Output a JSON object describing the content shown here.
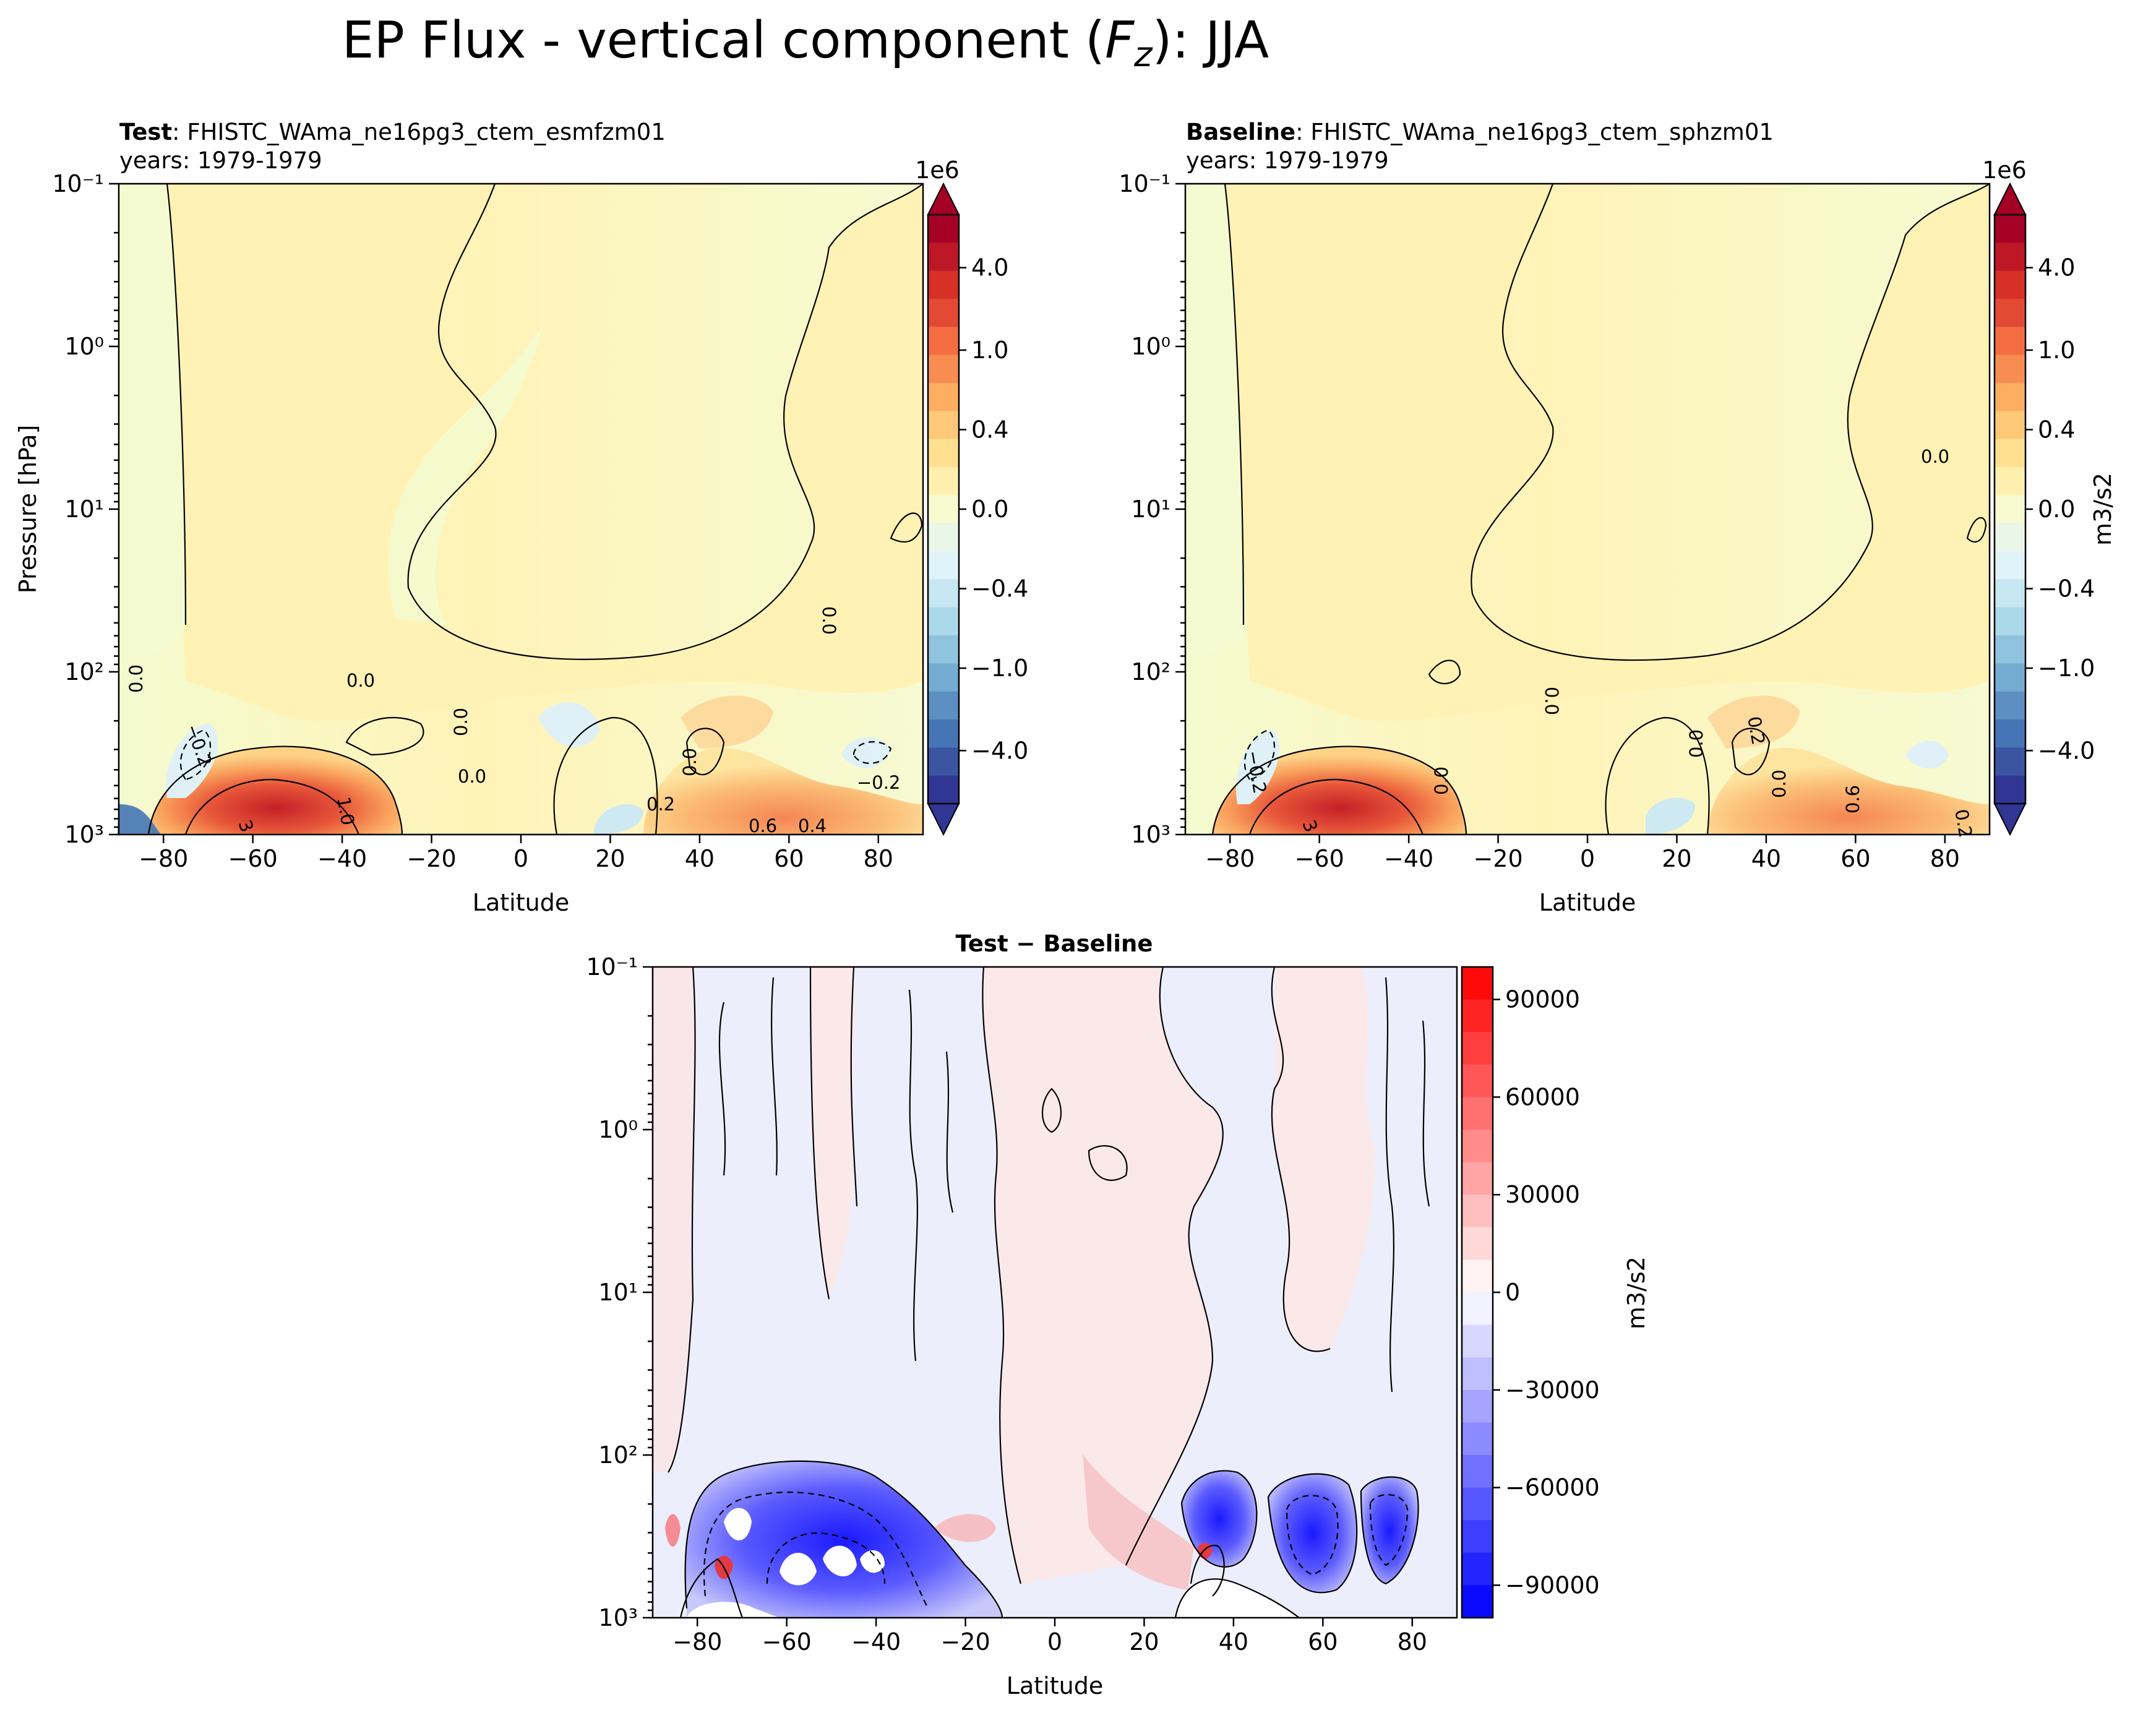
{
  "chart_data": {
    "type": "heatmap",
    "title": "EP Flux - vertical component (F_z): JJA",
    "title_parts": {
      "prefix": "EP Flux - vertical component (",
      "symbol": "F",
      "subscript": "z",
      "suffix": "): JJA"
    },
    "panels": [
      {
        "id": "test",
        "label_bold": "Test",
        "label_rest": ": FHISTC_WAma_ne16pg3_ctem_esmfzm01",
        "years": "years: 1979-1979",
        "xlabel": "Latitude",
        "ylabel": "Pressure [hPa]",
        "xlim": [
          -90,
          90
        ],
        "ylim_hpa": [
          1000,
          0.1
        ],
        "x_ticks": [
          "−80",
          "−60",
          "−40",
          "−20",
          "0",
          "20",
          "40",
          "60",
          "80"
        ],
        "y_ticks": [
          "10⁻¹",
          "10⁰",
          "10¹",
          "10²",
          "10³"
        ],
        "colorbar": {
          "offset_label": "1e6",
          "ticks": [
            "4.0",
            "1.0",
            "0.4",
            "0.0",
            "−0.4",
            "−1.0",
            "−4.0"
          ],
          "unit": ""
        },
        "contour_labels": [
          "0.0",
          "0.0",
          "0.0",
          "0.0",
          "0.0",
          "0.0",
          "−0.2",
          "−0.2",
          "0.2",
          "1.0",
          "3",
          "0.4",
          "0.6"
        ]
      },
      {
        "id": "baseline",
        "label_bold": "Baseline",
        "label_rest": ": FHISTC_WAma_ne16pg3_ctem_sphzm01",
        "years": "years: 1979-1979",
        "xlabel": "Latitude",
        "xlim": [
          -90,
          90
        ],
        "ylim_hpa": [
          1000,
          0.1
        ],
        "x_ticks": [
          "−80",
          "−60",
          "−40",
          "−20",
          "0",
          "20",
          "40",
          "60",
          "80"
        ],
        "y_ticks": [
          "10⁻¹",
          "10⁰",
          "10¹",
          "10²",
          "10³"
        ],
        "colorbar": {
          "offset_label": "1e6",
          "ticks": [
            "4.0",
            "1.0",
            "0.4",
            "0.0",
            "−0.4",
            "−1.0",
            "−4.0"
          ],
          "unit": "m3/s2"
        },
        "contour_labels": [
          "0.0",
          "0.0",
          "0.0",
          "0.0",
          "0.0",
          "−0.2",
          "0.2",
          "3",
          "0.6",
          "0.2"
        ]
      },
      {
        "id": "diff",
        "label_bold": "Test − Baseline",
        "xlabel": "Latitude",
        "xlim": [
          -90,
          90
        ],
        "ylim_hpa": [
          1000,
          0.1
        ],
        "x_ticks": [
          "−80",
          "−60",
          "−40",
          "−20",
          "0",
          "20",
          "40",
          "60",
          "80"
        ],
        "y_ticks": [
          "10⁻¹",
          "10⁰",
          "10¹",
          "10²",
          "10³"
        ],
        "colorbar": {
          "ticks": [
            "90000",
            "60000",
            "30000",
            "0",
            "−30000",
            "−60000",
            "−90000"
          ],
          "unit": "m3/s2"
        }
      }
    ],
    "colors": {
      "red_dark": "#a50026",
      "red": "#d73027",
      "orange": "#f46d43",
      "orange_light": "#fdae61",
      "yellow": "#fee090",
      "yellow_pale": "#ffffbf",
      "cream": "#fff5c0",
      "green_pale": "#f5fbd0",
      "cyan_pale": "#e0f3f8",
      "blue_light": "#abd9e9",
      "blue": "#74add1",
      "blue_mid": "#4575b4",
      "blue_dark": "#313695",
      "diff_blue": "#1a1aff",
      "diff_red": "#ff1a1a",
      "diff_pink": "#fbe8e8",
      "diff_lavender": "#eceefa"
    }
  }
}
